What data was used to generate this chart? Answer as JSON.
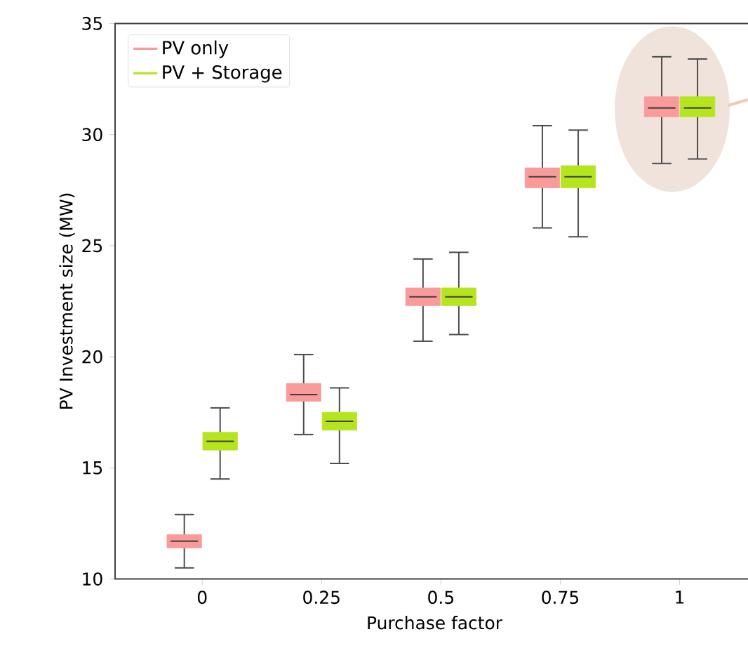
{
  "chart_data": {
    "type": "box",
    "xlabel": "Purchase factor",
    "ylabel": "PV Investment size (MW)",
    "categories": [
      "0",
      "0.25",
      "0.5",
      "0.75",
      "1"
    ],
    "ylim": [
      10,
      35
    ],
    "yticks": [
      10,
      15,
      20,
      25,
      30,
      35
    ],
    "legend": "top left",
    "grid": false,
    "series": [
      {
        "name": "PV only",
        "color": "#f99b9b",
        "boxes": [
          {
            "low": 10.5,
            "q1": 11.4,
            "median": 11.7,
            "q3": 12.0,
            "high": 12.9
          },
          {
            "low": 16.5,
            "q1": 18.0,
            "median": 18.3,
            "q3": 18.8,
            "high": 20.1
          },
          {
            "low": 20.7,
            "q1": 22.3,
            "median": 22.7,
            "q3": 23.1,
            "high": 24.4
          },
          {
            "low": 25.8,
            "q1": 27.6,
            "median": 28.1,
            "q3": 28.5,
            "high": 30.4
          },
          {
            "low": 28.7,
            "q1": 30.8,
            "median": 31.2,
            "q3": 31.7,
            "high": 33.5
          }
        ]
      },
      {
        "name": "PV + Storage",
        "color": "#b5e51d",
        "boxes": [
          {
            "low": 14.5,
            "q1": 15.8,
            "median": 16.2,
            "q3": 16.6,
            "high": 17.7
          },
          {
            "low": 15.2,
            "q1": 16.7,
            "median": 17.1,
            "q3": 17.5,
            "high": 18.6
          },
          {
            "low": 21.0,
            "q1": 22.3,
            "median": 22.7,
            "q3": 23.1,
            "high": 24.7
          },
          {
            "low": 25.4,
            "q1": 27.6,
            "median": 28.1,
            "q3": 28.6,
            "high": 30.2
          },
          {
            "low": 28.9,
            "q1": 30.8,
            "median": 31.2,
            "q3": 31.7,
            "high": 33.4
          }
        ]
      }
    ]
  }
}
